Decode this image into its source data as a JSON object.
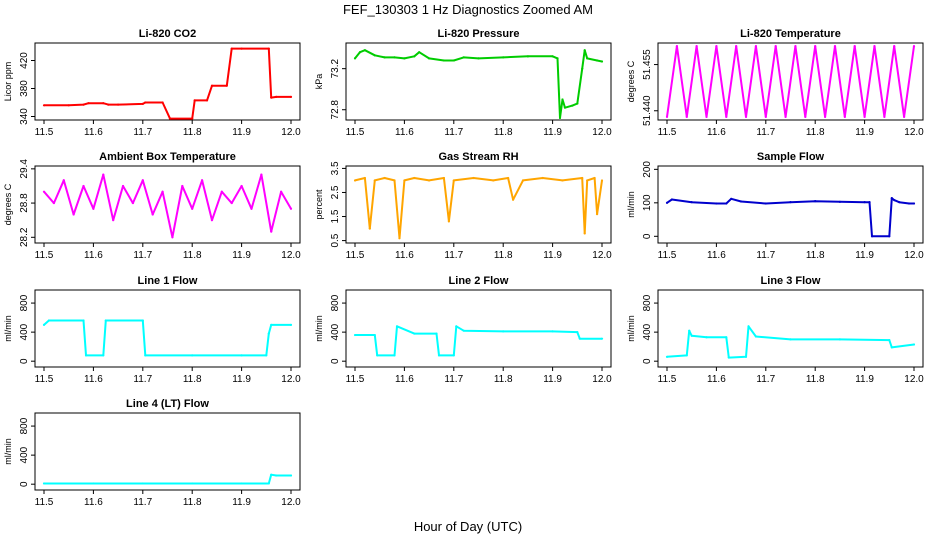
{
  "figure": {
    "title": "FEF_130303  1 Hz Diagnostics Zoomed AM",
    "xlabel": "Hour of Day (UTC)"
  },
  "chart_data": [
    {
      "type": "line",
      "title": "Li-820 CO2",
      "ylabel": "Licor ppm",
      "color": "#ff0000",
      "xlim": [
        11.5,
        12.0
      ],
      "xticks": [
        "11.5",
        "11.6",
        "11.7",
        "11.8",
        "11.9",
        "12.0"
      ],
      "ylim": [
        335,
        445
      ],
      "yticks": [
        "340",
        "380",
        "420"
      ],
      "series": [
        {
          "x": [
            11.5,
            11.55,
            11.58,
            11.59,
            11.62,
            11.63,
            11.65,
            11.7,
            11.705,
            11.74,
            11.755,
            11.8,
            11.805,
            11.83,
            11.84,
            11.87,
            11.88,
            11.9,
            11.955,
            11.96,
            11.97,
            12.0
          ],
          "y": [
            356,
            356,
            357,
            359,
            359,
            357,
            357,
            358,
            360,
            360,
            337,
            337,
            363,
            363,
            384,
            384,
            437,
            437,
            437,
            367,
            368,
            368
          ]
        }
      ]
    },
    {
      "type": "line",
      "title": "Li-820 Pressure",
      "ylabel": "kPa",
      "color": "#00cc00",
      "xlim": [
        11.5,
        12.0
      ],
      "xticks": [
        "11.5",
        "11.6",
        "11.7",
        "11.8",
        "11.9",
        "12.0"
      ],
      "ylim": [
        72.7,
        73.45
      ],
      "yticks": [
        "72.8",
        "73.2"
      ],
      "series": [
        {
          "x": [
            11.5,
            11.51,
            11.52,
            11.54,
            11.56,
            11.58,
            11.6,
            11.62,
            11.63,
            11.65,
            11.68,
            11.7,
            11.72,
            11.75,
            11.8,
            11.85,
            11.9,
            11.91,
            11.915,
            11.92,
            11.925,
            11.94,
            11.95,
            11.96,
            11.965,
            11.97,
            11.99,
            12.0
          ],
          "y": [
            73.3,
            73.36,
            73.38,
            73.33,
            73.31,
            73.31,
            73.3,
            73.32,
            73.36,
            73.3,
            73.28,
            73.28,
            73.31,
            73.3,
            73.31,
            73.32,
            73.32,
            73.3,
            72.72,
            72.9,
            72.82,
            72.84,
            72.86,
            73.2,
            73.38,
            73.3,
            73.28,
            73.27
          ]
        }
      ]
    },
    {
      "type": "line",
      "title": "Li-820 Temperature",
      "ylabel": "degrees C",
      "color": "#ff00ff",
      "xlim": [
        11.5,
        12.0
      ],
      "xticks": [
        "11.5",
        "11.6",
        "11.7",
        "11.8",
        "11.9",
        "12.0"
      ],
      "ylim": [
        51.437,
        51.462
      ],
      "yticks": [
        "51.440",
        "51.455"
      ],
      "series": [
        {
          "x": [
            11.5,
            11.52,
            11.54,
            11.56,
            11.58,
            11.6,
            11.62,
            11.64,
            11.66,
            11.68,
            11.7,
            11.72,
            11.74,
            11.76,
            11.78,
            11.8,
            11.82,
            11.84,
            11.86,
            11.88,
            11.9,
            11.92,
            11.94,
            11.96,
            11.98,
            12.0
          ],
          "y": [
            51.438,
            51.461,
            51.438,
            51.461,
            51.438,
            51.461,
            51.438,
            51.461,
            51.438,
            51.461,
            51.438,
            51.461,
            51.438,
            51.461,
            51.438,
            51.461,
            51.438,
            51.461,
            51.438,
            51.461,
            51.438,
            51.461,
            51.438,
            51.461,
            51.438,
            51.461
          ]
        }
      ]
    },
    {
      "type": "line",
      "title": "Ambient Box Temperature",
      "ylabel": "degrees C",
      "color": "#ff00ff",
      "xlim": [
        11.5,
        12.0
      ],
      "xticks": [
        "11.5",
        "11.6",
        "11.7",
        "11.8",
        "11.9",
        "12.0"
      ],
      "ylim": [
        28.1,
        29.45
      ],
      "yticks": [
        "28.2",
        "28.8",
        "29.4"
      ],
      "series": [
        {
          "x": [
            11.5,
            11.52,
            11.54,
            11.56,
            11.58,
            11.6,
            11.62,
            11.64,
            11.66,
            11.68,
            11.7,
            11.72,
            11.74,
            11.76,
            11.78,
            11.8,
            11.82,
            11.84,
            11.86,
            11.88,
            11.9,
            11.92,
            11.94,
            11.96,
            11.98,
            12.0
          ],
          "y": [
            29.0,
            28.8,
            29.2,
            28.6,
            29.1,
            28.7,
            29.3,
            28.5,
            29.1,
            28.8,
            29.2,
            28.6,
            29.0,
            28.2,
            29.1,
            28.7,
            29.2,
            28.5,
            29.0,
            28.8,
            29.1,
            28.7,
            29.3,
            28.3,
            29.0,
            28.7
          ]
        }
      ]
    },
    {
      "type": "line",
      "title": "Gas Stream RH",
      "ylabel": "percent",
      "color": "#ffa500",
      "xlim": [
        11.5,
        12.0
      ],
      "xticks": [
        "11.5",
        "11.6",
        "11.7",
        "11.8",
        "11.9",
        "12.0"
      ],
      "ylim": [
        0.4,
        3.6
      ],
      "yticks": [
        "0.5",
        "1.5",
        "2.5",
        "3.5"
      ],
      "series": [
        {
          "x": [
            11.5,
            11.52,
            11.53,
            11.54,
            11.56,
            11.58,
            11.59,
            11.6,
            11.62,
            11.65,
            11.68,
            11.69,
            11.7,
            11.74,
            11.78,
            11.81,
            11.82,
            11.84,
            11.88,
            11.92,
            11.96,
            11.965,
            11.97,
            11.985,
            11.99,
            12.0
          ],
          "y": [
            3.0,
            3.1,
            1.0,
            3.0,
            3.1,
            3.0,
            0.6,
            3.0,
            3.1,
            3.0,
            3.1,
            1.3,
            3.0,
            3.1,
            3.0,
            3.1,
            2.2,
            3.0,
            3.1,
            3.0,
            3.1,
            0.8,
            3.0,
            3.1,
            1.6,
            3.0
          ]
        }
      ]
    },
    {
      "type": "line",
      "title": "Sample Flow",
      "ylabel": "ml/min",
      "color": "#0000cc",
      "xlim": [
        11.5,
        12.0
      ],
      "xticks": [
        "11.5",
        "11.6",
        "11.7",
        "11.8",
        "11.9",
        "12.0"
      ],
      "ylim": [
        -20,
        210
      ],
      "yticks": [
        "0",
        "100",
        "200"
      ],
      "series": [
        {
          "x": [
            11.5,
            11.51,
            11.55,
            11.6,
            11.62,
            11.63,
            11.65,
            11.7,
            11.75,
            11.8,
            11.85,
            11.9,
            11.91,
            11.915,
            11.95,
            11.955,
            11.96,
            11.97,
            11.99,
            12.0
          ],
          "y": [
            100,
            110,
            102,
            98,
            98,
            112,
            104,
            98,
            102,
            105,
            103,
            102,
            102,
            0,
            0,
            114,
            108,
            102,
            98,
            98
          ]
        }
      ]
    },
    {
      "type": "line",
      "title": "Line 1 Flow",
      "ylabel": "ml/min",
      "color": "#00ffff",
      "xlim": [
        11.5,
        12.0
      ],
      "xticks": [
        "11.5",
        "11.6",
        "11.7",
        "11.8",
        "11.9",
        "12.0"
      ],
      "ylim": [
        -80,
        980
      ],
      "yticks": [
        "0",
        "400",
        "800"
      ],
      "series": [
        {
          "x": [
            11.5,
            11.51,
            11.58,
            11.585,
            11.62,
            11.625,
            11.7,
            11.705,
            11.8,
            11.9,
            11.95,
            11.955,
            11.96,
            12.0
          ],
          "y": [
            500,
            560,
            560,
            80,
            80,
            560,
            560,
            80,
            80,
            80,
            80,
            380,
            500,
            500
          ]
        }
      ]
    },
    {
      "type": "line",
      "title": "Line 2 Flow",
      "ylabel": "ml/min",
      "color": "#00ffff",
      "xlim": [
        11.5,
        12.0
      ],
      "xticks": [
        "11.5",
        "11.6",
        "11.7",
        "11.8",
        "11.9",
        "12.0"
      ],
      "ylim": [
        -80,
        980
      ],
      "yticks": [
        "0",
        "400",
        "800"
      ],
      "series": [
        {
          "x": [
            11.5,
            11.54,
            11.545,
            11.58,
            11.585,
            11.62,
            11.665,
            11.67,
            11.7,
            11.705,
            11.72,
            11.8,
            11.9,
            11.95,
            11.955,
            12.0
          ],
          "y": [
            360,
            360,
            80,
            80,
            480,
            380,
            380,
            80,
            80,
            480,
            420,
            410,
            410,
            400,
            310,
            310
          ]
        }
      ]
    },
    {
      "type": "line",
      "title": "Line 3 Flow",
      "ylabel": "ml/min",
      "color": "#00ffff",
      "xlim": [
        11.5,
        12.0
      ],
      "xticks": [
        "11.5",
        "11.6",
        "11.7",
        "11.8",
        "11.9",
        "12.0"
      ],
      "ylim": [
        -80,
        980
      ],
      "yticks": [
        "0",
        "400",
        "800"
      ],
      "series": [
        {
          "x": [
            11.5,
            11.54,
            11.545,
            11.55,
            11.58,
            11.62,
            11.625,
            11.66,
            11.665,
            11.68,
            11.75,
            11.85,
            11.95,
            11.955,
            12.0
          ],
          "y": [
            60,
            80,
            420,
            350,
            330,
            330,
            50,
            60,
            480,
            340,
            300,
            300,
            290,
            190,
            230
          ]
        }
      ]
    },
    {
      "type": "line",
      "title": "Line 4 (LT) Flow",
      "ylabel": "ml/min",
      "color": "#00ffff",
      "xlim": [
        11.5,
        12.0
      ],
      "xticks": [
        "11.5",
        "11.6",
        "11.7",
        "11.8",
        "11.9",
        "12.0"
      ],
      "ylim": [
        -80,
        980
      ],
      "yticks": [
        "0",
        "400",
        "800"
      ],
      "series": [
        {
          "x": [
            11.5,
            11.6,
            11.7,
            11.8,
            11.9,
            11.955,
            11.96,
            11.97,
            12.0
          ],
          "y": [
            10,
            10,
            10,
            10,
            10,
            10,
            130,
            120,
            120
          ]
        }
      ]
    }
  ]
}
